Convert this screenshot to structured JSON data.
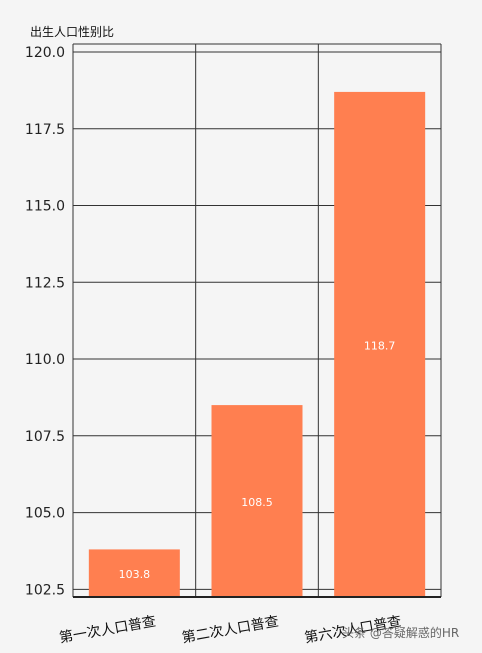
{
  "chart_data": {
    "type": "bar",
    "title": "",
    "ylabel": "出生人口性别比",
    "xlabel": "",
    "categories": [
      "第一次人口普查",
      "第二次人口普查",
      "第六次人口普查"
    ],
    "values": [
      103.8,
      108.5,
      118.7
    ],
    "value_labels": [
      "103.8",
      "108.5",
      "118.7"
    ],
    "ylim": [
      102.5,
      120.0
    ],
    "yticks": [
      102.5,
      105.0,
      107.5,
      110.0,
      112.5,
      115.0,
      117.5,
      120.0
    ],
    "ytick_labels": [
      "102.5",
      "105.0",
      "107.5",
      "110.0",
      "112.5",
      "115.0",
      "117.5",
      "120.0"
    ],
    "grid": true,
    "legend": "none",
    "bar_color": "#ff7f50"
  },
  "watermark": "头条 @答疑解惑的HR"
}
